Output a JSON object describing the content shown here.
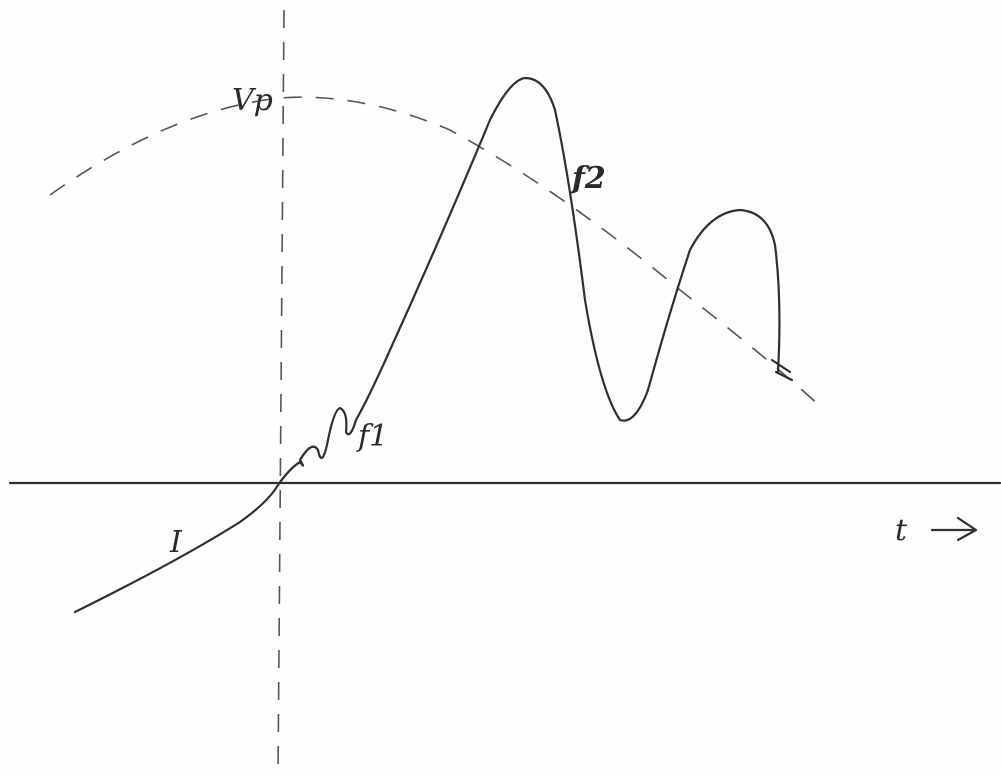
{
  "labels": {
    "vp": "Vp",
    "f2": "f2",
    "f1": "f1",
    "i": "I",
    "t": "t"
  }
}
